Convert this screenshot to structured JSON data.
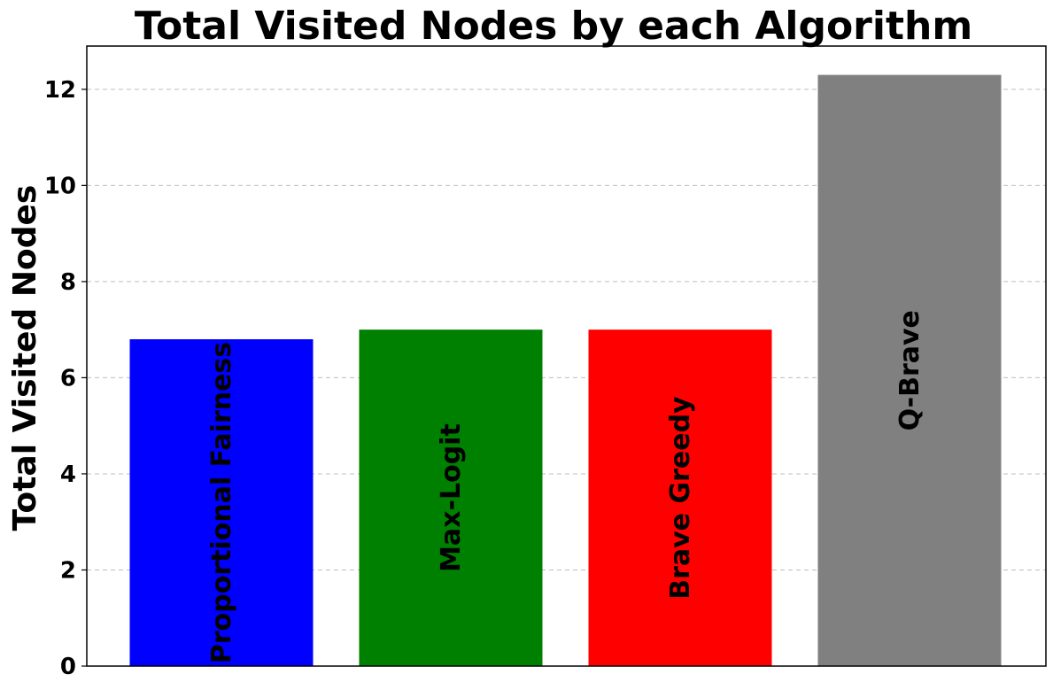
{
  "chart_data": {
    "type": "bar",
    "title": "Total Visited Nodes by each Algorithm",
    "xlabel": "",
    "ylabel": "Total Visited Nodes",
    "categories": [
      "Proportional Fairness",
      "Max-Logit",
      "Brave Greedy",
      "Q-Brave"
    ],
    "values": [
      6.8,
      7.0,
      7.0,
      12.3
    ],
    "colors": [
      "#0000ff",
      "#008000",
      "#ff0000",
      "#808080"
    ],
    "ylim": [
      0,
      12.9
    ],
    "yticks": [
      0,
      2,
      4,
      6,
      8,
      10,
      12
    ],
    "grid": "y-dashed",
    "legend": "none",
    "bar_label_orientation": "vertical"
  }
}
